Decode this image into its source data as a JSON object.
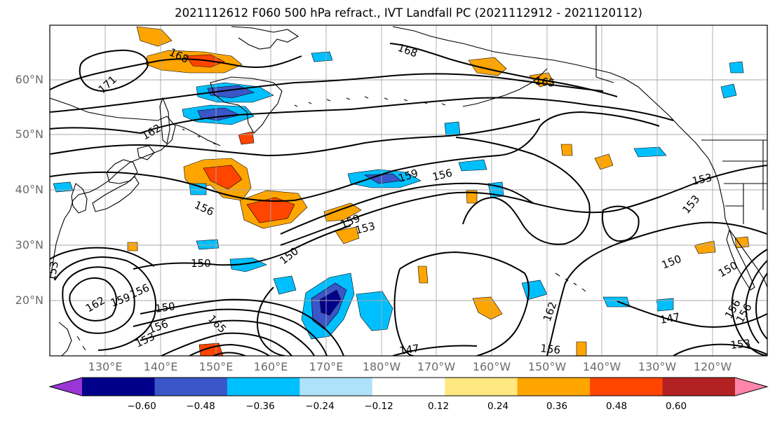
{
  "title": "2021112612 F060 500 hPa refract., IVT Landfall PC (2021112912 - 2021120112)",
  "map": {
    "lat_ticks": [
      "60°N",
      "50°N",
      "40°N",
      "30°N",
      "20°N"
    ],
    "lon_ticks": [
      "130°E",
      "140°E",
      "150°E",
      "160°E",
      "170°E",
      "180°W",
      "170°W",
      "160°W",
      "150°W",
      "140°W",
      "130°W",
      "120°W"
    ],
    "contour_labels": [
      "171",
      "168",
      "168",
      "165",
      "162",
      "162",
      "159",
      "159",
      "159",
      "156",
      "156",
      "156",
      "156",
      "156",
      "156",
      "153",
      "153",
      "153",
      "153",
      "153",
      "150",
      "150",
      "150",
      "150",
      "150",
      "147",
      "147",
      "165",
      "156",
      "153",
      "162"
    ]
  },
  "colorbar": {
    "tick_labels": [
      "−0.60",
      "−0.48",
      "−0.36",
      "−0.24",
      "−0.12",
      "0.12",
      "0.24",
      "0.36",
      "0.48",
      "0.60"
    ],
    "colors": [
      "#9a35d6",
      "#00008b",
      "#3a56c8",
      "#00bfff",
      "#aee2fb",
      "#ffffff",
      "#ffe880",
      "#ffa500",
      "#ff4500",
      "#b22222",
      "#ff85aa"
    ]
  }
}
